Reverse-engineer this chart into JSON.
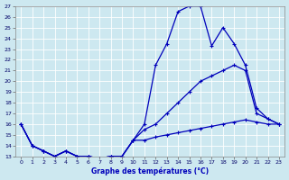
{
  "xlabel": "Graphe des températures (°C)",
  "bg_color": "#cde8f0",
  "grid_color": "#b0d4e0",
  "line_color": "#0000bb",
  "ylim": [
    13,
    27
  ],
  "xlim": [
    -0.5,
    23.5
  ],
  "yticks": [
    13,
    14,
    15,
    16,
    17,
    18,
    19,
    20,
    21,
    22,
    23,
    24,
    25,
    26,
    27
  ],
  "xticks": [
    0,
    1,
    2,
    3,
    4,
    5,
    6,
    7,
    8,
    9,
    10,
    11,
    12,
    13,
    14,
    15,
    16,
    17,
    18,
    19,
    20,
    21,
    22,
    23
  ],
  "line1_x": [
    0,
    1,
    2,
    3,
    4,
    5,
    6,
    7,
    8,
    9,
    10,
    11,
    12,
    13,
    14,
    15,
    16,
    17,
    18,
    19,
    20,
    21,
    22,
    23
  ],
  "line1_y": [
    16.0,
    14.0,
    13.5,
    13.0,
    13.5,
    13.0,
    13.0,
    12.8,
    13.0,
    13.0,
    14.5,
    16.0,
    21.5,
    23.5,
    26.5,
    27.0,
    27.0,
    23.3,
    25.0,
    23.5,
    21.5,
    17.5,
    16.5,
    16.0
  ],
  "line2_x": [
    0,
    1,
    2,
    3,
    4,
    5,
    6,
    7,
    8,
    9,
    10,
    11,
    12,
    13,
    14,
    15,
    16,
    17,
    18,
    19,
    20,
    21,
    22,
    23
  ],
  "line2_y": [
    16.0,
    14.0,
    13.5,
    13.0,
    13.5,
    13.0,
    13.0,
    12.8,
    13.0,
    13.0,
    14.5,
    15.5,
    16.0,
    17.0,
    18.0,
    19.0,
    20.0,
    20.5,
    21.0,
    21.5,
    21.0,
    17.0,
    16.5,
    16.0
  ],
  "line3_x": [
    0,
    1,
    2,
    3,
    4,
    5,
    6,
    7,
    8,
    9,
    10,
    11,
    12,
    13,
    14,
    15,
    16,
    17,
    18,
    19,
    20,
    21,
    22,
    23
  ],
  "line3_y": [
    16.0,
    14.0,
    13.5,
    13.0,
    13.5,
    13.0,
    13.0,
    12.8,
    13.0,
    13.0,
    14.5,
    14.5,
    14.8,
    15.0,
    15.2,
    15.4,
    15.6,
    15.8,
    16.0,
    16.2,
    16.4,
    16.2,
    16.0,
    16.0
  ]
}
